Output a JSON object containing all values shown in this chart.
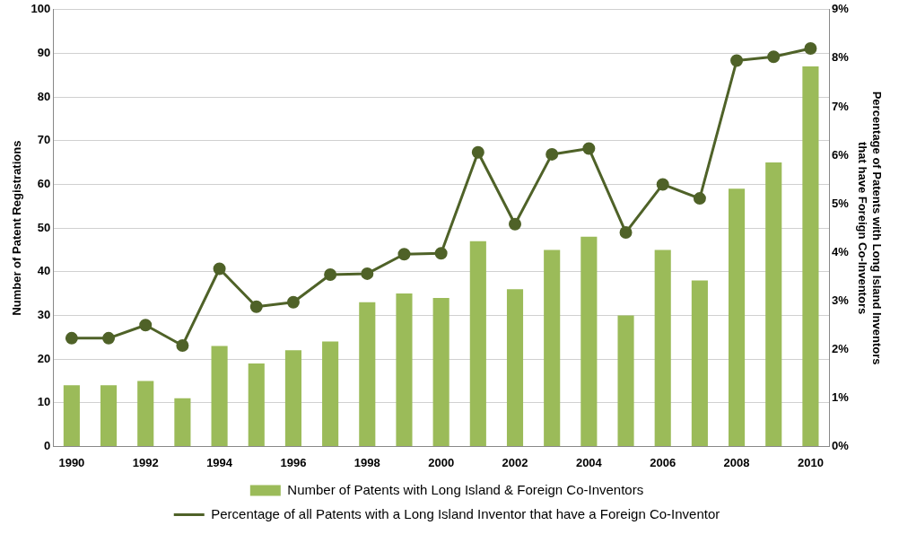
{
  "chart_data": {
    "type": "bar",
    "ylabel": "Number of Patent Registrations",
    "y2label": "Percentage of Patents with Long Island Inventors\nthat have Foreign Co-Inventors",
    "categories": [
      "1990",
      null,
      "1992",
      null,
      "1994",
      null,
      "1996",
      null,
      "1998",
      null,
      "2000",
      null,
      "2002",
      null,
      "2004",
      null,
      "2006",
      null,
      "2008",
      null,
      "2010"
    ],
    "series": [
      {
        "name": "Number of Patents with Long Island & Foreign Co-Inventors",
        "color": "#9bbb59",
        "values": [
          14,
          14,
          15,
          11,
          23,
          19,
          22,
          24,
          33,
          35,
          34,
          47,
          36,
          45,
          48,
          30,
          45,
          38,
          59,
          65,
          87
        ]
      },
      {
        "type": "line",
        "axis": "y2",
        "name": "Percentage of all Patents with a Long Island Inventor that have a Foreign Co-Inventor",
        "color": "#4f6228",
        "values": [
          2.23,
          2.23,
          2.5,
          2.08,
          3.66,
          2.88,
          2.97,
          3.54,
          3.56,
          3.96,
          3.98,
          6.06,
          4.58,
          6.02,
          6.14,
          4.41,
          5.4,
          5.11,
          7.95,
          8.03,
          8.2
        ]
      }
    ],
    "ylim": [
      0,
      100
    ],
    "yticks": [
      0,
      10,
      20,
      30,
      40,
      50,
      60,
      70,
      80,
      90,
      100
    ],
    "y2lim": [
      0,
      9
    ],
    "y2ticks": [
      {
        "value": 0,
        "label": "0%"
      },
      {
        "value": 1,
        "label": "1%"
      },
      {
        "value": 2,
        "label": "2%"
      },
      {
        "value": 3,
        "label": "3%"
      },
      {
        "value": 4,
        "label": "4%"
      },
      {
        "value": 5,
        "label": "5%"
      },
      {
        "value": 6,
        "label": "6%"
      },
      {
        "value": 7,
        "label": "7%"
      },
      {
        "value": 8,
        "label": "8%"
      },
      {
        "value": 9,
        "label": "9%"
      }
    ],
    "grid": "y",
    "legend": "bottom",
    "marker": "circle",
    "line_style": "solid"
  }
}
